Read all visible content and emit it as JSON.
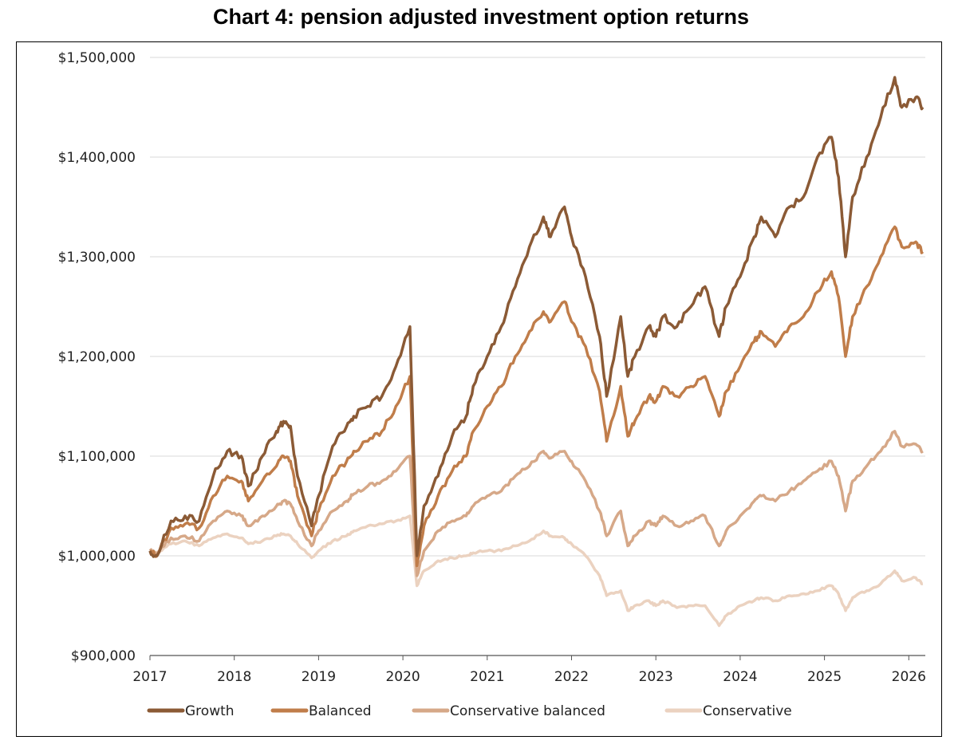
{
  "chart_data": {
    "type": "line",
    "title": "Chart 4: pension adjusted investment option returns",
    "xlabel": "",
    "ylabel": "",
    "ylim": [
      900000,
      1500000
    ],
    "yticks": [
      "$900,000",
      "$1,000,000",
      "$1,100,000",
      "$1,200,000",
      "$1,300,000",
      "$1,400,000",
      "$1,500,000"
    ],
    "ytick_values": [
      900000,
      1000000,
      1100000,
      1200000,
      1300000,
      1400000,
      1500000
    ],
    "xticks": [
      "2017",
      "2018",
      "2019",
      "2020",
      "2021",
      "2022",
      "2023",
      "2024",
      "2025",
      "2026"
    ],
    "grid": "horizontal",
    "legend_position": "bottom",
    "x": [
      "2017-01",
      "2017-02",
      "2017-04",
      "2017-06",
      "2017-08",
      "2017-10",
      "2017-12",
      "2018-02",
      "2018-03",
      "2018-05",
      "2018-07",
      "2018-08",
      "2018-09",
      "2018-10",
      "2018-12",
      "2019-01",
      "2019-03",
      "2019-05",
      "2019-06",
      "2019-08",
      "2019-10",
      "2019-12",
      "2020-02",
      "2020-03",
      "2020-04",
      "2020-06",
      "2020-08",
      "2020-10",
      "2020-11",
      "2021-01",
      "2021-03",
      "2021-05",
      "2021-07",
      "2021-09",
      "2021-10",
      "2021-12",
      "2022-01",
      "2022-03",
      "2022-05",
      "2022-06",
      "2022-08",
      "2022-09",
      "2022-10",
      "2022-12",
      "2023-01",
      "2023-02",
      "2023-04",
      "2023-06",
      "2023-08",
      "2023-10",
      "2023-11",
      "2024-01",
      "2024-03",
      "2024-04",
      "2024-06",
      "2024-08",
      "2024-10",
      "2024-12",
      "2025-02",
      "2025-03",
      "2025-04",
      "2025-05",
      "2025-07",
      "2025-09",
      "2025-11",
      "2025-12",
      "2026-02",
      "2026-03"
    ],
    "series": [
      {
        "name": "Growth",
        "color": "#8b5a35",
        "values": [
          1005000,
          1000000,
          1035000,
          1040000,
          1035000,
          1080000,
          1105000,
          1100000,
          1070000,
          1100000,
          1125000,
          1135000,
          1130000,
          1080000,
          1030000,
          1060000,
          1110000,
          1130000,
          1140000,
          1150000,
          1160000,
          1190000,
          1230000,
          1000000,
          1050000,
          1080000,
          1120000,
          1140000,
          1170000,
          1200000,
          1230000,
          1270000,
          1310000,
          1340000,
          1320000,
          1350000,
          1320000,
          1280000,
          1220000,
          1160000,
          1240000,
          1180000,
          1200000,
          1230000,
          1220000,
          1240000,
          1230000,
          1250000,
          1270000,
          1220000,
          1250000,
          1280000,
          1320000,
          1340000,
          1320000,
          1350000,
          1360000,
          1400000,
          1420000,
          1380000,
          1300000,
          1360000,
          1400000,
          1440000,
          1480000,
          1450000,
          1460000,
          1450000
        ]
      },
      {
        "name": "Balanced",
        "color": "#c07d4a",
        "values": [
          1005000,
          1000000,
          1028000,
          1032000,
          1028000,
          1060000,
          1080000,
          1075000,
          1055000,
          1075000,
          1090000,
          1100000,
          1095000,
          1060000,
          1020000,
          1045000,
          1080000,
          1095000,
          1105000,
          1115000,
          1125000,
          1150000,
          1180000,
          990000,
          1030000,
          1060000,
          1085000,
          1100000,
          1125000,
          1150000,
          1170000,
          1200000,
          1225000,
          1245000,
          1235000,
          1255000,
          1235000,
          1210000,
          1165000,
          1115000,
          1170000,
          1120000,
          1135000,
          1160000,
          1155000,
          1170000,
          1160000,
          1170000,
          1180000,
          1140000,
          1165000,
          1190000,
          1215000,
          1225000,
          1210000,
          1230000,
          1240000,
          1265000,
          1285000,
          1260000,
          1200000,
          1240000,
          1270000,
          1300000,
          1330000,
          1310000,
          1315000,
          1305000
        ]
      },
      {
        "name": "Conservative balanced",
        "color": "#d6a888",
        "values": [
          1005000,
          1002000,
          1018000,
          1020000,
          1015000,
          1035000,
          1045000,
          1040000,
          1030000,
          1040000,
          1050000,
          1055000,
          1052000,
          1035000,
          1010000,
          1025000,
          1045000,
          1055000,
          1062000,
          1070000,
          1075000,
          1085000,
          1100000,
          980000,
          1005000,
          1025000,
          1035000,
          1040000,
          1050000,
          1060000,
          1065000,
          1080000,
          1090000,
          1105000,
          1098000,
          1105000,
          1095000,
          1075000,
          1045000,
          1020000,
          1045000,
          1010000,
          1020000,
          1035000,
          1030000,
          1040000,
          1030000,
          1035000,
          1040000,
          1010000,
          1025000,
          1040000,
          1055000,
          1060000,
          1055000,
          1065000,
          1075000,
          1085000,
          1095000,
          1080000,
          1045000,
          1075000,
          1090000,
          1105000,
          1125000,
          1110000,
          1112000,
          1105000
        ]
      },
      {
        "name": "Conservative",
        "color": "#ebd2c0",
        "values": [
          1005000,
          1003000,
          1012000,
          1015000,
          1010000,
          1018000,
          1022000,
          1018000,
          1012000,
          1015000,
          1020000,
          1022000,
          1020000,
          1012000,
          998000,
          1005000,
          1015000,
          1020000,
          1025000,
          1030000,
          1032000,
          1035000,
          1040000,
          970000,
          985000,
          995000,
          998000,
          1000000,
          1003000,
          1005000,
          1005000,
          1010000,
          1015000,
          1025000,
          1020000,
          1018000,
          1012000,
          1000000,
          980000,
          960000,
          965000,
          945000,
          950000,
          955000,
          950000,
          955000,
          948000,
          950000,
          950000,
          930000,
          940000,
          950000,
          955000,
          958000,
          955000,
          960000,
          962000,
          965000,
          970000,
          962000,
          945000,
          958000,
          965000,
          972000,
          985000,
          975000,
          978000,
          972000
        ]
      }
    ]
  }
}
